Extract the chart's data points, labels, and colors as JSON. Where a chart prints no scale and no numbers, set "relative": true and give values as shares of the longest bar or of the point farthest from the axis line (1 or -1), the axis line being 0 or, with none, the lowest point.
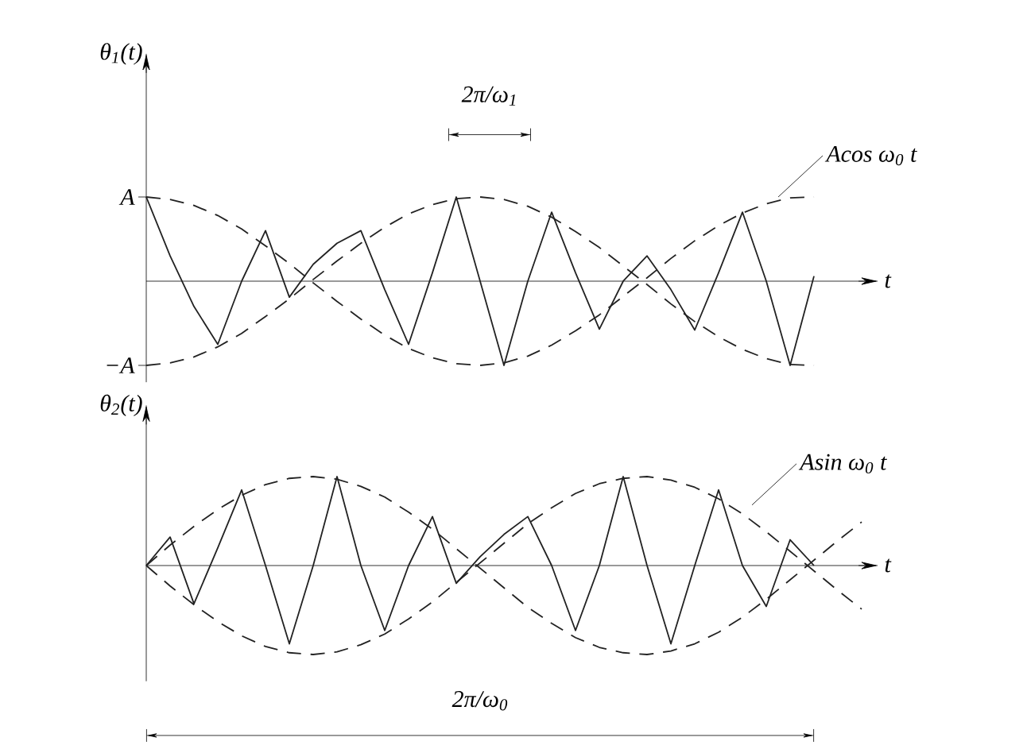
{
  "chart_data": [
    {
      "type": "line",
      "relative": true,
      "ylabel": "θ$_{1}$(t)",
      "xlabel": "t",
      "annotations": [
        "Acos ω$_{0}$ t",
        "2π/ω$_{1}$",
        "A",
        "−A"
      ],
      "categories": [
        null,
        null,
        null,
        null,
        null,
        null,
        null,
        null,
        null,
        null,
        null,
        null,
        null,
        null,
        null,
        null,
        null,
        null,
        null,
        null,
        null,
        null,
        null,
        null,
        null,
        null,
        null,
        null,
        null
      ],
      "series": [
        {
          "color": "#222222",
          "line_style": "solid",
          "values": [
            1.0,
            0.3,
            -0.3,
            -0.75,
            0,
            0.6,
            -0.19,
            0.2,
            0.45,
            0.6,
            -0.1,
            -0.75,
            0.1,
            1.0,
            0,
            -1.0,
            0,
            0.82,
            0.1,
            -0.57,
            0,
            0.3,
            -0.1,
            -0.58,
            0.1,
            0.82,
            0,
            -1.0,
            0.06
          ]
        },
        {
          "color": "#222222",
          "line_style": "dashed",
          "values": [
            1,
            0.97,
            0.9,
            0.78,
            0.62,
            0.42,
            0.21,
            -0.02,
            -0.24,
            -0.45,
            -0.64,
            -0.8,
            -0.91,
            -0.98,
            -1,
            -0.97,
            -0.89,
            -0.76,
            -0.59,
            -0.4,
            -0.18,
            0.04,
            0.27,
            0.48,
            0.66,
            0.81,
            0.92,
            0.99,
            1
          ]
        },
        {
          "color": "#222222",
          "line_style": "dashed",
          "values": [
            -1,
            -0.97,
            -0.9,
            -0.78,
            -0.62,
            -0.42,
            -0.21,
            0.02,
            0.24,
            0.45,
            0.64,
            0.8,
            0.91,
            0.98,
            1,
            0.97,
            0.89,
            0.76,
            0.59,
            0.4,
            0.18,
            -0.04,
            -0.27,
            -0.48,
            -0.66,
            -0.81,
            -0.92,
            -0.99,
            -1
          ]
        }
      ]
    },
    {
      "type": "line",
      "relative": true,
      "ylabel": "θ$_{2}$(t)",
      "xlabel": "t",
      "annotations": [
        "Asin ω$_{0}$ t",
        "2π/ω$_{0}$"
      ],
      "categories": [
        null,
        null,
        null,
        null,
        null,
        null,
        null,
        null,
        null,
        null,
        null,
        null,
        null,
        null,
        null,
        null,
        null,
        null,
        null,
        null,
        null,
        null,
        null,
        null,
        null,
        null,
        null,
        null,
        null,
        null,
        null
      ],
      "series": [
        {
          "color": "#222222",
          "line_style": "solid",
          "values": [
            0,
            0.32,
            -0.43,
            0.2,
            0.85,
            0,
            -0.88,
            0,
            1.0,
            0,
            -0.73,
            0,
            0.55,
            -0.2,
            0.1,
            0.35,
            0.55,
            0,
            -0.73,
            0,
            1.0,
            0,
            -0.88,
            0,
            0.85,
            0,
            -0.46,
            0.29,
            0,
            null,
            null
          ]
        },
        {
          "color": "#222222",
          "line_style": "dashed",
          "values": [
            0,
            0.23,
            0.44,
            0.63,
            0.79,
            0.91,
            0.98,
            1,
            0.97,
            0.89,
            0.77,
            0.6,
            0.41,
            0.19,
            -0.03,
            -0.25,
            -0.47,
            -0.65,
            -0.81,
            -0.92,
            -0.98,
            -1,
            -0.96,
            -0.88,
            -0.75,
            -0.58,
            -0.38,
            -0.16,
            0.06,
            0.28,
            0.49
          ]
        },
        {
          "color": "#222222",
          "line_style": "dashed",
          "values": [
            0,
            -0.23,
            -0.44,
            -0.63,
            -0.79,
            -0.91,
            -0.98,
            -1,
            -0.97,
            -0.89,
            -0.77,
            -0.6,
            -0.41,
            -0.19,
            0.03,
            0.25,
            0.47,
            0.65,
            0.81,
            0.92,
            0.98,
            1,
            0.96,
            0.88,
            0.75,
            0.58,
            0.38,
            0.16,
            -0.06,
            -0.28,
            -0.49
          ]
        }
      ]
    }
  ]
}
